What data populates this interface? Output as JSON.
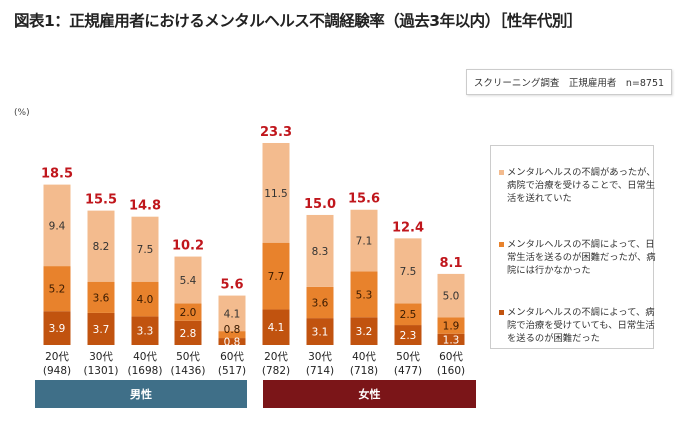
{
  "title": "図表1：正規雇用者におけるメンタルヘルス不調経験率（過去3年以内）［性年代別］",
  "note": "スクリーニング調査　正規雇用者　n=8751",
  "colors": {
    "top": "#f3bb8e",
    "middle": "#e8822c",
    "bottom": "#c1530f",
    "total_label": "#c0161c",
    "male": "#3f6f88",
    "female": "#7b1518"
  },
  "chart_data": {
    "type": "bar",
    "stacked": true,
    "ylabel": "(%)",
    "groups": [
      {
        "name": "男性",
        "start": 0,
        "count": 5
      },
      {
        "name": "女性",
        "start": 5,
        "count": 5
      }
    ],
    "categories": [
      {
        "age": "20代",
        "n": "(948)"
      },
      {
        "age": "30代",
        "n": "(1301)"
      },
      {
        "age": "40代",
        "n": "(1698)"
      },
      {
        "age": "50代",
        "n": "(1436)"
      },
      {
        "age": "60代",
        "n": "(517)"
      },
      {
        "age": "20代",
        "n": "(782)"
      },
      {
        "age": "30代",
        "n": "(714)"
      },
      {
        "age": "40代",
        "n": "(718)"
      },
      {
        "age": "50代",
        "n": "(477)"
      },
      {
        "age": "60代",
        "n": "(160)"
      }
    ],
    "series": [
      {
        "name": "メンタルヘルスの不調によって、病院で治療を受けていても、日常生活を送るのが困難だった",
        "values": [
          3.9,
          3.7,
          3.3,
          2.8,
          0.8,
          4.1,
          3.1,
          3.2,
          2.3,
          1.3
        ]
      },
      {
        "name": "メンタルヘルスの不調によって、日常生活を送るのが困難だったが、病院には行かなかった",
        "values": [
          5.2,
          3.6,
          4.0,
          2.0,
          0.8,
          7.7,
          3.6,
          5.3,
          2.5,
          1.9
        ]
      },
      {
        "name": "メンタルヘルスの不調があったが、病院で治療を受けることで、日常生活を送れていた",
        "values": [
          9.4,
          8.2,
          7.5,
          5.4,
          4.1,
          11.5,
          8.3,
          7.1,
          7.5,
          5.0
        ]
      }
    ],
    "totals": [
      18.5,
      15.5,
      14.8,
      10.2,
      5.6,
      23.3,
      15.0,
      15.6,
      12.4,
      8.1
    ],
    "legend_position": "right",
    "grid": false
  }
}
